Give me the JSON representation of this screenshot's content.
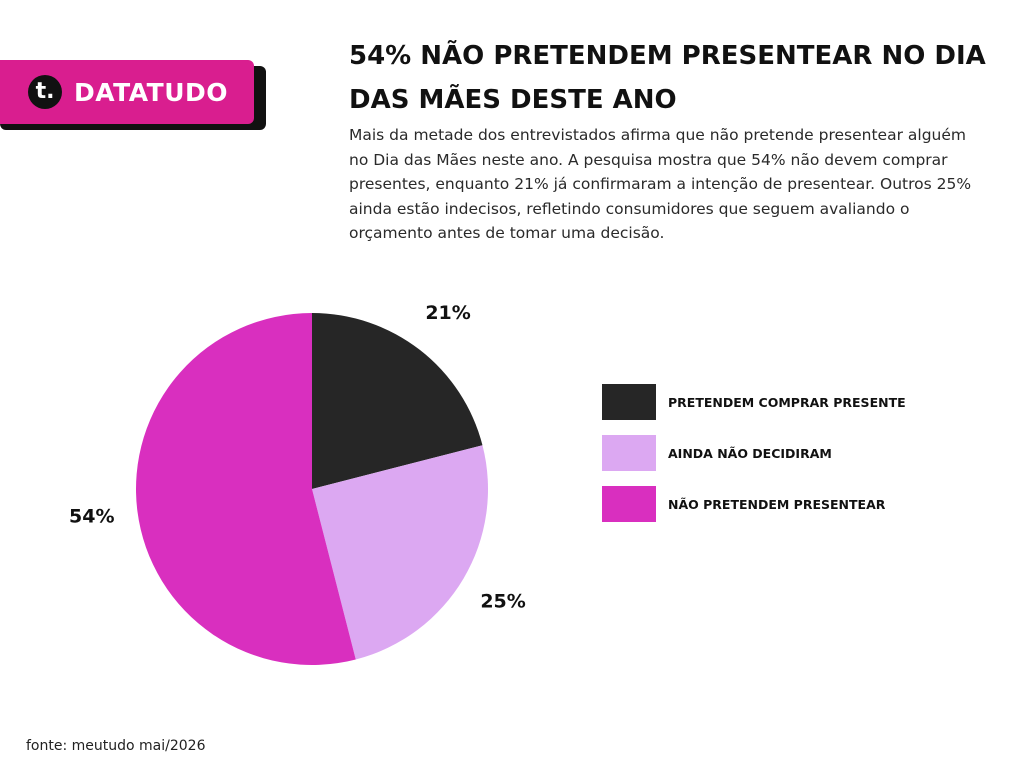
{
  "brand": {
    "logo_letter": "t.",
    "name": "DATATUDO",
    "color": "#d91e8f"
  },
  "header": {
    "title": "54% NÃO PRETENDEM PRESENTEAR NO DIA DAS MÃES DESTE ANO",
    "description": "Mais da metade dos entrevistados afirma que não pretende presentear alguém no Dia das Mães neste ano. A pesquisa mostra que 54% não devem comprar presentes, enquanto 21% já confirmaram a intenção de presentear. Outros 25% ainda estão indecisos, refletindo consumidores que seguem avaliando o orçamento antes de tomar uma decisão."
  },
  "chart_data": {
    "type": "pie",
    "title": "54% NÃO PRETENDEM PRESENTEAR NO DIA DAS MÃES DESTE ANO",
    "categories": [
      "PRETENDEM COMPRAR PRESENTE",
      "AINDA NÃO DECIDIRAM",
      "NÃO PRETENDEM PRESENTEAR"
    ],
    "values": [
      21,
      25,
      54
    ],
    "labels": [
      "21%",
      "25%",
      "54%"
    ],
    "colors": [
      "#262626",
      "#dca8f2",
      "#d92fbf"
    ],
    "legend_position": "right"
  },
  "source": "fonte: meutudo mai/2026"
}
